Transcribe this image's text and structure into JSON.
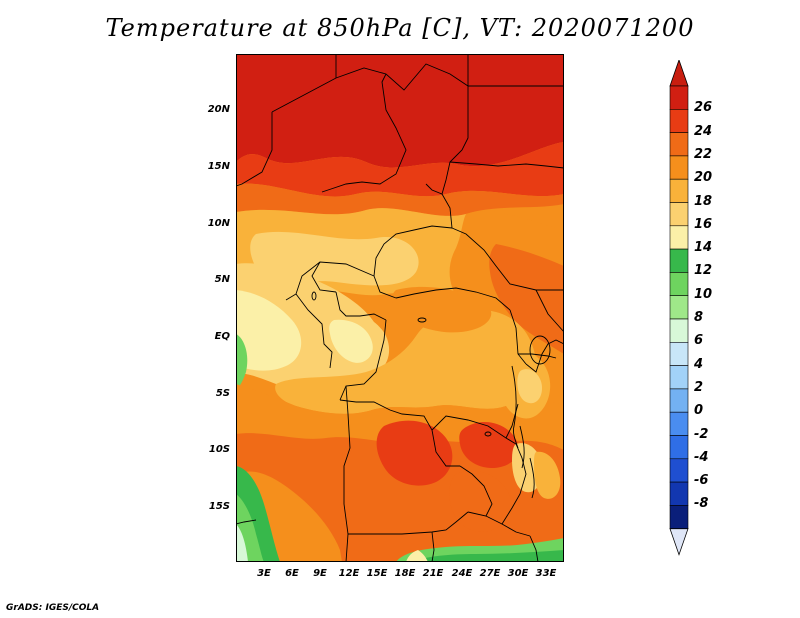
{
  "title": "Temperature at 850hPa [C], VT: 2020071200",
  "credit": "GrADS: IGES/COLA",
  "map": {
    "variable": "Temperature",
    "level": "850hPa",
    "units": "C",
    "valid_time": "2020071200",
    "lat_labels": [
      "20N",
      "15N",
      "10N",
      "5N",
      "EQ",
      "5S",
      "10S",
      "15S"
    ],
    "lon_labels": [
      "3E",
      "6E",
      "9E",
      "12E",
      "15E",
      "18E",
      "21E",
      "24E",
      "27E",
      "30E",
      "33E"
    ]
  },
  "colorbar": {
    "labels": [
      "26",
      "24",
      "22",
      "20",
      "18",
      "16",
      "14",
      "12",
      "10",
      "8",
      "6",
      "4",
      "2",
      "0",
      "-2",
      "-4",
      "-6",
      "-8"
    ],
    "colors": [
      "#d11f12",
      "#e83c14",
      "#f06b17",
      "#f58f1c",
      "#f9b23a",
      "#fbd170",
      "#fbf0a8",
      "#37b84b",
      "#6ed45f",
      "#9fe889",
      "#d8f8d8",
      "#c8e6f8",
      "#a2d2f8",
      "#73b1f2",
      "#4a8df0",
      "#2f6ee6",
      "#1f4fd1",
      "#1237b0",
      "#0a1f7a"
    ],
    "under_color": "#dfe6f7",
    "over_color": "#c81e10"
  },
  "colors": {
    "background": "#ffffff",
    "border": "#000000"
  }
}
